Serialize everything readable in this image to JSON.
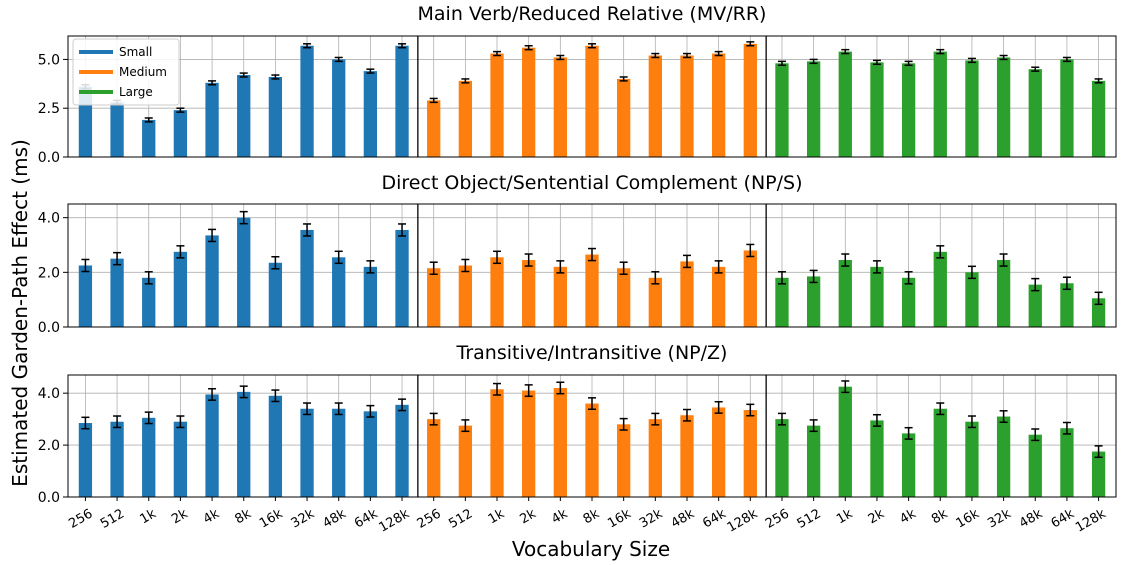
{
  "chart_data": {
    "type": "bar",
    "ylabel": "Estimated Garden-Path Effect (ms)",
    "xlabel": "Vocabulary Size",
    "categories": [
      "256",
      "512",
      "1k",
      "2k",
      "4k",
      "8k",
      "16k",
      "32k",
      "48k",
      "64k",
      "128k"
    ],
    "legend": {
      "placement": "top-left",
      "entries": [
        "Small",
        "Medium",
        "Large"
      ]
    },
    "colors": {
      "Small": "#1f77b4",
      "Medium": "#ff7f0e",
      "Large": "#2ca02c"
    },
    "grid": true,
    "panels": [
      {
        "title": "Main Verb/Reduced Relative (MV/RR)",
        "ylim": [
          0,
          6.2
        ],
        "yticks": [
          "0.0",
          "2.5",
          "5.0"
        ],
        "ytick_values": [
          0,
          2.5,
          5.0
        ],
        "series": [
          {
            "name": "Small",
            "values": [
              3.6,
              2.8,
              1.9,
              2.4,
              3.8,
              4.2,
              4.1,
              5.7,
              5.0,
              4.4,
              5.7
            ],
            "errors": [
              0.1,
              0.1,
              0.1,
              0.1,
              0.1,
              0.1,
              0.1,
              0.1,
              0.1,
              0.1,
              0.1
            ]
          },
          {
            "name": "Medium",
            "values": [
              2.9,
              3.9,
              5.3,
              5.6,
              5.1,
              5.7,
              4.0,
              5.2,
              5.2,
              5.3,
              5.8
            ],
            "errors": [
              0.1,
              0.1,
              0.1,
              0.1,
              0.1,
              0.1,
              0.1,
              0.1,
              0.1,
              0.1,
              0.1
            ]
          },
          {
            "name": "Large",
            "values": [
              4.8,
              4.9,
              5.4,
              4.85,
              4.8,
              5.4,
              4.95,
              5.1,
              4.5,
              5.0,
              3.9
            ],
            "errors": [
              0.1,
              0.1,
              0.1,
              0.1,
              0.1,
              0.1,
              0.1,
              0.1,
              0.1,
              0.1,
              0.1
            ]
          }
        ]
      },
      {
        "title": "Direct Object/Sentential Complement (NP/S)",
        "ylim": [
          0,
          4.5
        ],
        "yticks": [
          "0.0",
          "2.0",
          "4.0"
        ],
        "ytick_values": [
          0,
          2.0,
          4.0
        ],
        "series": [
          {
            "name": "Small",
            "values": [
              2.25,
              2.5,
              1.8,
              2.75,
              3.35,
              4.0,
              2.35,
              3.55,
              2.55,
              2.2,
              3.55
            ],
            "errors": [
              0.22,
              0.22,
              0.22,
              0.22,
              0.22,
              0.22,
              0.22,
              0.22,
              0.22,
              0.22,
              0.22
            ]
          },
          {
            "name": "Medium",
            "values": [
              2.15,
              2.25,
              2.55,
              2.45,
              2.2,
              2.65,
              2.15,
              1.8,
              2.4,
              2.2,
              2.8
            ],
            "errors": [
              0.22,
              0.22,
              0.22,
              0.22,
              0.22,
              0.22,
              0.22,
              0.22,
              0.22,
              0.22,
              0.22
            ]
          },
          {
            "name": "Large",
            "values": [
              1.8,
              1.85,
              2.45,
              2.2,
              1.8,
              2.75,
              2.0,
              2.45,
              1.55,
              1.6,
              1.05
            ],
            "errors": [
              0.22,
              0.22,
              0.22,
              0.22,
              0.22,
              0.22,
              0.22,
              0.22,
              0.22,
              0.22,
              0.22
            ]
          }
        ]
      },
      {
        "title": "Transitive/Intransitive (NP/Z)",
        "ylim": [
          0,
          4.7
        ],
        "yticks": [
          "0.0",
          "2.0",
          "4.0"
        ],
        "ytick_values": [
          0,
          2.0,
          4.0
        ],
        "series": [
          {
            "name": "Small",
            "values": [
              2.85,
              2.9,
              3.05,
              2.9,
              3.95,
              4.05,
              3.9,
              3.4,
              3.4,
              3.3,
              3.55
            ],
            "errors": [
              0.22,
              0.22,
              0.22,
              0.22,
              0.22,
              0.22,
              0.22,
              0.22,
              0.22,
              0.22,
              0.22
            ]
          },
          {
            "name": "Medium",
            "values": [
              3.0,
              2.75,
              4.15,
              4.1,
              4.2,
              3.6,
              2.8,
              3.0,
              3.15,
              3.45,
              3.35
            ],
            "errors": [
              0.22,
              0.22,
              0.22,
              0.22,
              0.22,
              0.22,
              0.22,
              0.22,
              0.22,
              0.22,
              0.22
            ]
          },
          {
            "name": "Large",
            "values": [
              3.0,
              2.75,
              4.25,
              2.95,
              2.45,
              3.4,
              2.9,
              3.1,
              2.4,
              2.65,
              1.75
            ],
            "errors": [
              0.22,
              0.22,
              0.22,
              0.22,
              0.22,
              0.22,
              0.22,
              0.22,
              0.22,
              0.22,
              0.22
            ]
          }
        ]
      }
    ]
  }
}
